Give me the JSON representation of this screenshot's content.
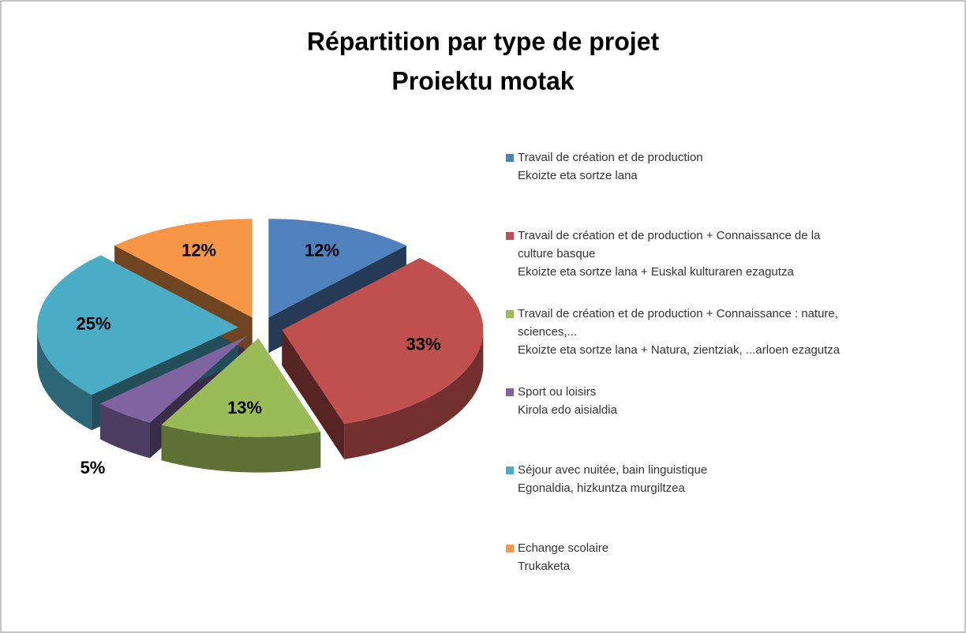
{
  "chart_data": {
    "type": "pie",
    "title": "Répartition par type de projet",
    "subtitle": "Proiektu motak",
    "categories": [
      [
        "Travail de création et de production",
        "Ekoizte eta sortze lana"
      ],
      [
        "Travail de création et de production + Connaissance de la",
        "culture basque",
        "Ekoizte eta sortze lana + Euskal kulturaren ezagutza"
      ],
      [
        "Travail de création et de production  + Connaissance : nature,",
        "sciences,...",
        "Ekoizte eta sortze lana + Natura, zientziak, ...arloen ezagutza"
      ],
      [
        "Sport ou loisirs",
        "Kirola edo aisialdia"
      ],
      [
        "Séjour avec nuitée, bain linguistique",
        "Egonaldia, hizkuntza murgiltzea"
      ],
      [
        "Echange scolaire",
        "Trukaketa"
      ]
    ],
    "values": [
      12,
      33,
      13,
      5,
      25,
      12
    ],
    "value_labels": [
      "12%",
      "33%",
      "13%",
      "5%",
      "25%",
      "12%"
    ],
    "colors": [
      "#4f81bd",
      "#c0504d",
      "#9bbb59",
      "#8064a2",
      "#4bacc6",
      "#f79646"
    ],
    "legend": "right"
  }
}
